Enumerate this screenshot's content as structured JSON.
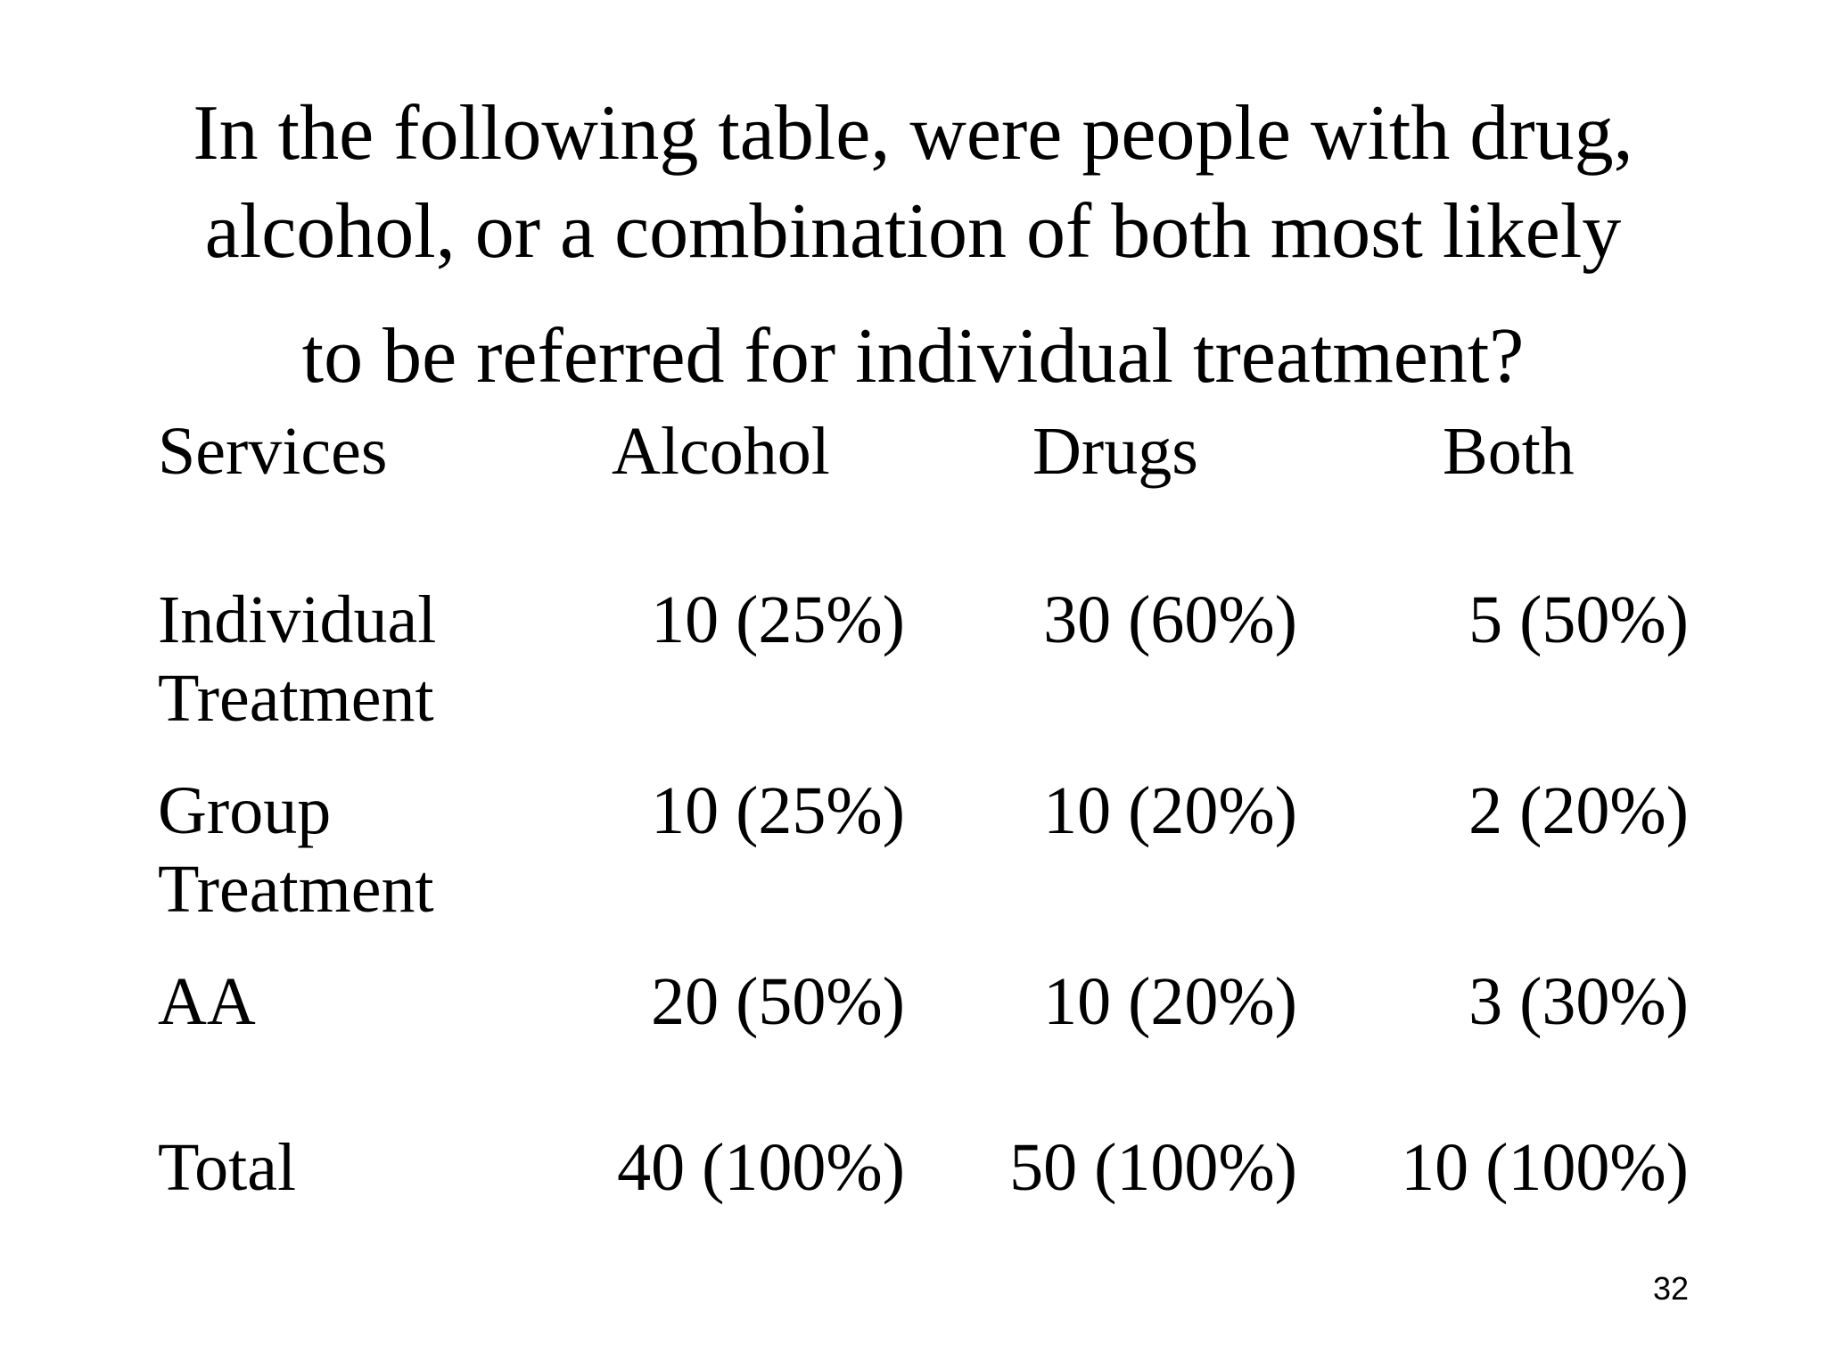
{
  "title": {
    "lines": [
      "In the following table, were people with drug,",
      "alcohol, or a combination of both most likely",
      "to be referred for individual treatment?"
    ]
  },
  "table": {
    "headers": [
      "Services",
      "Alcohol",
      "Drugs",
      "Both"
    ],
    "rows": [
      {
        "label": [
          "Individual",
          "Treatment"
        ],
        "values": [
          "10 (25%)",
          "30 (60%)",
          "5 (50%)"
        ]
      },
      {
        "label": [
          "Group",
          "Treatment"
        ],
        "values": [
          "10 (25%)",
          "10 (20%)",
          "2 (20%)"
        ]
      },
      {
        "label": [
          "AA"
        ],
        "values": [
          "20 (50%)",
          "10 (20%)",
          "3 (30%)"
        ]
      },
      {
        "label": [
          "Total"
        ],
        "values": [
          "40 (100%)",
          "50 (100%)",
          "10 (100%)"
        ]
      }
    ]
  },
  "page_number": "32"
}
